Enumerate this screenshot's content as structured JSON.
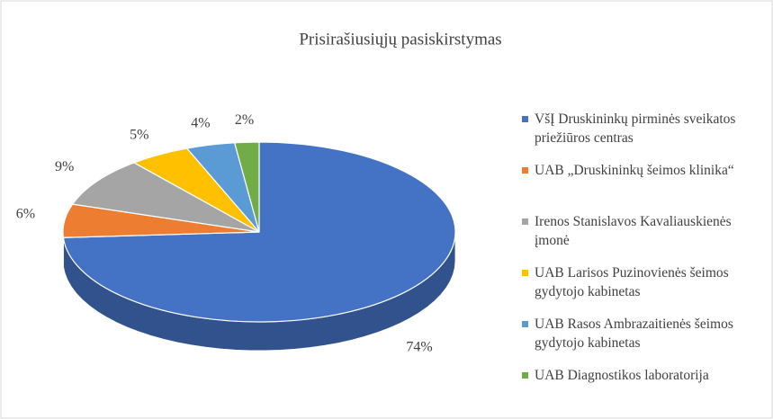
{
  "chart_data": {
    "type": "pie3d",
    "title": "Prisirašiusiųjų pasiskirstymas",
    "categories": [
      "VšĮ Druskininkų pirminės sveikatos priežiūros centras",
      "UAB „Druskininkų šeimos klinika“",
      "Irenos Stanislavos Kavaliauskienės įmonė",
      "UAB Larisos Puzinovienės šeimos gydytojo kabinetas",
      "UAB Rasos Ambrazaitienės šeimos gydytojo kabinetas",
      "UAB Diagnostikos laboratorija"
    ],
    "values": [
      74,
      6,
      9,
      5,
      4,
      2
    ],
    "value_labels": [
      "74%",
      "6%",
      "9%",
      "5%",
      "4%",
      "2%"
    ],
    "colors": [
      "#4472c4",
      "#ed7d31",
      "#a5a5a5",
      "#ffc000",
      "#5b9bd5",
      "#70ad47"
    ],
    "legend": "right"
  }
}
